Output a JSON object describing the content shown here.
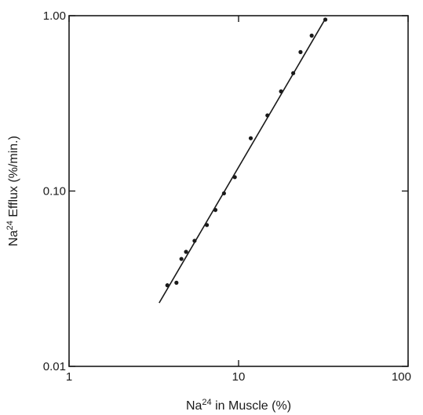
{
  "chart_data": {
    "type": "scatter",
    "xscale": "log",
    "yscale": "log",
    "xlim": [
      1,
      100
    ],
    "ylim": [
      0.01,
      1.0
    ],
    "xticks": [
      {
        "value": 1,
        "label": "1"
      },
      {
        "value": 10,
        "label": "10"
      },
      {
        "value": 100,
        "label": "100"
      }
    ],
    "yticks": [
      {
        "value": 0.01,
        "label": "0.01"
      },
      {
        "value": 0.1,
        "label": "0.10"
      },
      {
        "value": 1.0,
        "label": "1.00"
      }
    ],
    "xlabel": {
      "prefix": "Na",
      "sup": "24",
      "suffix": " in Muscle (%)"
    },
    "ylabel": {
      "prefix": "Na",
      "sup": "24",
      "suffix": " Efflux (%/min.)"
    },
    "grid": false,
    "points": [
      {
        "x": 3.8,
        "y": 0.029
      },
      {
        "x": 4.3,
        "y": 0.03
      },
      {
        "x": 4.6,
        "y": 0.041
      },
      {
        "x": 4.9,
        "y": 0.045
      },
      {
        "x": 5.5,
        "y": 0.052
      },
      {
        "x": 6.5,
        "y": 0.064
      },
      {
        "x": 7.3,
        "y": 0.078
      },
      {
        "x": 8.2,
        "y": 0.097
      },
      {
        "x": 9.5,
        "y": 0.12
      },
      {
        "x": 11.8,
        "y": 0.2
      },
      {
        "x": 14.8,
        "y": 0.27
      },
      {
        "x": 17.8,
        "y": 0.37
      },
      {
        "x": 21.0,
        "y": 0.47
      },
      {
        "x": 23.2,
        "y": 0.62
      },
      {
        "x": 27.0,
        "y": 0.77
      },
      {
        "x": 32.5,
        "y": 0.95
      }
    ],
    "fit_line": [
      {
        "x": 3.4,
        "y": 0.023
      },
      {
        "x": 32.5,
        "y": 0.96
      }
    ]
  }
}
